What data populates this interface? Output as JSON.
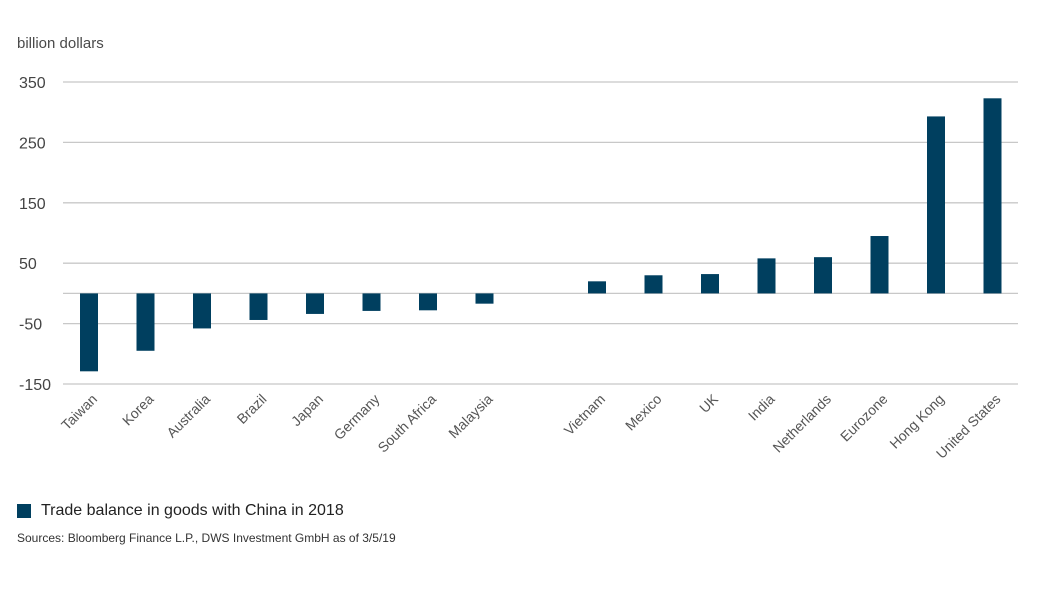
{
  "chart_data": {
    "type": "bar",
    "ylabel": "billion dollars",
    "ylim": [
      -150,
      350
    ],
    "yticks": [
      350,
      250,
      150,
      50,
      -50,
      -150
    ],
    "grid": true,
    "legend_position": "bottom-left",
    "categories": [
      "Taiwan",
      "Korea",
      "Australia",
      "Brazil",
      "Japan",
      "Germany",
      "South Africa",
      "Malaysia",
      "Vietnam",
      "Mexico",
      "UK",
      "India",
      "Netherlands",
      "Eurozone",
      "Hong Kong",
      "United States"
    ],
    "series": [
      {
        "name": "Trade balance in goods with China in 2018",
        "color": "#003f5f",
        "values": [
          -129,
          -95,
          -58,
          -44,
          -34,
          -29,
          -28,
          -17,
          20,
          30,
          32,
          58,
          60,
          95,
          293,
          323
        ]
      }
    ]
  },
  "footer": {
    "source": "Sources: Bloomberg Finance L.P., DWS Investment GmbH as of 3/5/19"
  }
}
